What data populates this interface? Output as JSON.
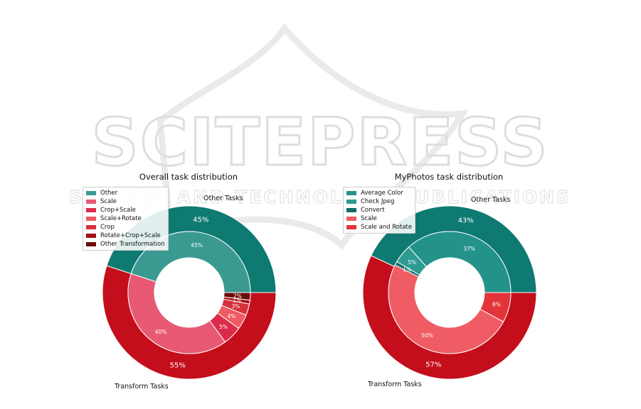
{
  "watermark": {
    "brand": "SCITEPRESS",
    "tagline": "SCIENCE AND TECHNOLOGY PUBLICATIONS"
  },
  "chart_data": [
    {
      "type": "pie",
      "title": "Overall task distribution",
      "outer": [
        {
          "label": "Other Tasks",
          "pct_label": "45%",
          "value": 45,
          "color": "#0e7a72"
        },
        {
          "label": "Transform Tasks",
          "pct_label": "55%",
          "value": 55,
          "color": "#c40e1b"
        }
      ],
      "inner": [
        {
          "label": "Other",
          "pct_label": "45%",
          "value": 45,
          "color": "#3a9a91"
        },
        {
          "label": "Scale",
          "pct_label": "40%",
          "value": 40,
          "color": "#e85a74"
        },
        {
          "label": "Crop+Scale",
          "pct_label": "5%",
          "value": 5,
          "color": "#dc2b4a"
        },
        {
          "label": "Scale+Rotate",
          "pct_label": "4%",
          "value": 4,
          "color": "#ef5b62"
        },
        {
          "label": "Crop",
          "pct_label": "3%",
          "value": 3,
          "color": "#d6303a"
        },
        {
          "label": "Rotate+Crop+Scale",
          "pct_label": "1%",
          "value": 1,
          "color": "#a80d16"
        },
        {
          "label": "Other Transformation",
          "pct_label": "2%",
          "value": 2,
          "color": "#6f0a0a"
        }
      ],
      "legend": [
        "Other",
        "Scale",
        "Crop+Scale",
        "Scale+Rotate",
        "Crop",
        "Rotate+Crop+Scale",
        "Other Transformation"
      ]
    },
    {
      "type": "pie",
      "title": "MyPhotos task distribution",
      "outer": [
        {
          "label": "Other Tasks",
          "pct_label": "43%",
          "value": 43,
          "color": "#0e7a72"
        },
        {
          "label": "Transform Tasks",
          "pct_label": "57%",
          "value": 57,
          "color": "#c40e1b"
        }
      ],
      "inner": [
        {
          "label": "Average Color",
          "pct_label": "37%",
          "value": 37,
          "color": "#23938a"
        },
        {
          "label": "Check Jpeg",
          "pct_label": "5%",
          "value": 5,
          "color": "#2c9c92"
        },
        {
          "label": "Convert",
          "pct_label": "1%",
          "value": 1,
          "color": "#0d6e66"
        },
        {
          "label": "Scale",
          "pct_label": "50%",
          "value": 50,
          "color": "#f05c64"
        },
        {
          "label": "Scale and Rotate",
          "pct_label": "8%",
          "value": 8,
          "color": "#e3343a"
        }
      ],
      "legend": [
        "Average Color",
        "Check Jpeg",
        "Convert",
        "Scale",
        "Scale and Rotate"
      ]
    }
  ]
}
